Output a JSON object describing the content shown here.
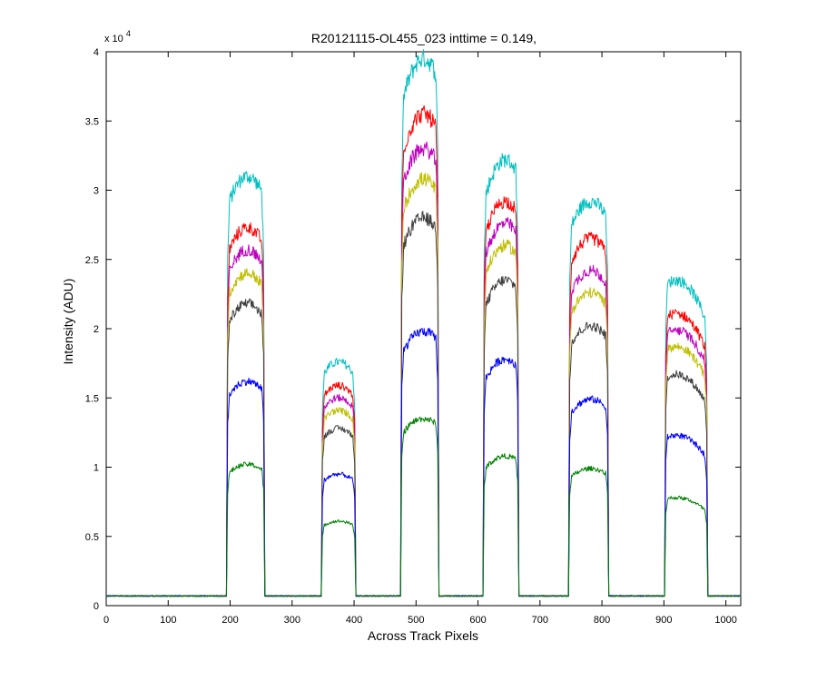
{
  "chart_data": {
    "type": "line",
    "title": "R20121115-OL455_023 inttime = 0.149,",
    "xlabel": "Across Track Pixels",
    "ylabel": "Intensity (ADU)",
    "y_exponent_label": {
      "base": "x 10",
      "exp": "4"
    },
    "xlim": [
      0,
      1024
    ],
    "ylim": [
      0,
      40000
    ],
    "x_ticks": [
      0,
      100,
      200,
      300,
      400,
      500,
      600,
      700,
      800,
      900,
      1000
    ],
    "x_tick_labels": [
      "0",
      "100",
      "200",
      "300",
      "400",
      "500",
      "600",
      "700",
      "800",
      "900",
      "1000"
    ],
    "y_ticks": [
      0,
      5000,
      10000,
      15000,
      20000,
      25000,
      30000,
      35000,
      40000
    ],
    "y_tick_labels": [
      "0",
      "0.5",
      "1",
      "1.5",
      "2",
      "2.5",
      "3",
      "3.5",
      "4"
    ],
    "grid": false,
    "legend": "none",
    "background_level": 700,
    "blocks": [
      {
        "x_start": 195,
        "x_end": 255,
        "peak_x": 228
      },
      {
        "x_start": 348,
        "x_end": 402,
        "peak_x": 375
      },
      {
        "x_start": 476,
        "x_end": 536,
        "peak_x": 512
      },
      {
        "x_start": 609,
        "x_end": 665,
        "peak_x": 644
      },
      {
        "x_start": 747,
        "x_end": 810,
        "peak_x": 782
      },
      {
        "x_start": 902,
        "x_end": 970,
        "peak_x": 920
      }
    ],
    "series": [
      {
        "color": "#00bfbf",
        "peaks": [
          31000,
          17600,
          39500,
          32200,
          29200,
          23500
        ]
      },
      {
        "color": "#ff0000",
        "peaks": [
          27300,
          15900,
          35500,
          29200,
          26500,
          21100
        ]
      },
      {
        "color": "#bf00bf",
        "peaks": [
          25700,
          15000,
          33000,
          27600,
          24200,
          19900
        ]
      },
      {
        "color": "#bfbf00",
        "peaks": [
          24000,
          14100,
          30800,
          26000,
          22600,
          18700
        ]
      },
      {
        "color": "#404040",
        "peaks": [
          21800,
          12800,
          28000,
          23500,
          20200,
          16700
        ]
      },
      {
        "color": "#0000ff",
        "peaks": [
          16200,
          9500,
          19800,
          17800,
          14900,
          12300
        ]
      },
      {
        "color": "#008000",
        "peaks": [
          10200,
          6100,
          13500,
          10800,
          9900,
          7800
        ]
      }
    ]
  }
}
